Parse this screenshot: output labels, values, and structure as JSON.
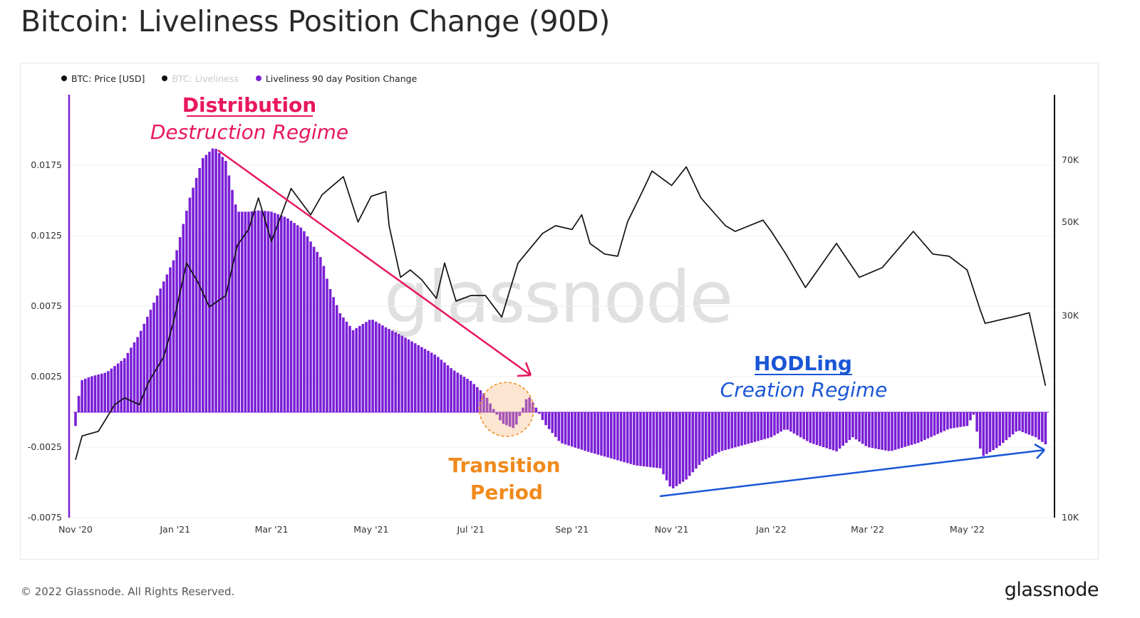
{
  "page_title": "Bitcoin: Liveliness Position Change (90D)",
  "legend": [
    {
      "label": "BTC: Price [USD]",
      "color": "#111111",
      "active": true
    },
    {
      "label": "BTC: Liveliness",
      "color": "#111111",
      "active": false
    },
    {
      "label": "Liveliness 90 day Position Change",
      "color": "#7a1fd6",
      "active": true
    }
  ],
  "watermark": "glassnode",
  "footer": {
    "copyright": "© 2022 Glassnode. All Rights Reserved.",
    "logo": "glassnode"
  },
  "colors": {
    "bars": "#7a1fd6",
    "price": "#111111",
    "distribution": "#e8175d",
    "hodling": "#1a56d6",
    "transition": "#f08a1c"
  },
  "annotations": {
    "distribution_title": "Distribution",
    "distribution_sub": "Destruction Regime",
    "transition_line1": "Transition",
    "transition_line2": "Period",
    "hodling_title": "HODLing",
    "hodling_sub": "Creation Regime"
  },
  "chart_data": {
    "type": "bar",
    "title": "Bitcoin: Liveliness Position Change (90D)",
    "x_axis": {
      "type": "date",
      "range": [
        "2020-11-01",
        "2022-06-20"
      ],
      "ticks": [
        {
          "date": "2020-11-01",
          "label": "Nov '20"
        },
        {
          "date": "2021-01-01",
          "label": "Jan '21"
        },
        {
          "date": "2021-03-01",
          "label": "Mar '21"
        },
        {
          "date": "2021-05-01",
          "label": "May '21"
        },
        {
          "date": "2021-07-01",
          "label": "Jul '21"
        },
        {
          "date": "2021-09-01",
          "label": "Sep '21"
        },
        {
          "date": "2021-11-01",
          "label": "Nov '21"
        },
        {
          "date": "2022-01-01",
          "label": "Jan '22"
        },
        {
          "date": "2022-03-01",
          "label": "Mar '22"
        },
        {
          "date": "2022-05-01",
          "label": "May '22"
        }
      ]
    },
    "y_left": {
      "range": [
        -0.0075,
        0.0225
      ],
      "ticks": [
        {
          "value": -0.0075,
          "label": "-0.0075"
        },
        {
          "value": -0.0025,
          "label": "-0.0025"
        },
        {
          "value": 0.0025,
          "label": "0.0025"
        },
        {
          "value": 0.0075,
          "label": "0.0075"
        },
        {
          "value": 0.0125,
          "label": "0.0125"
        },
        {
          "value": 0.0175,
          "label": "0.0175"
        }
      ]
    },
    "y_right": {
      "scale": "log",
      "range": [
        10000,
        100000
      ],
      "ticks": [
        {
          "value": 10000,
          "label": "10K"
        },
        {
          "value": 30000,
          "label": "30K"
        },
        {
          "value": 50000,
          "label": "50K"
        },
        {
          "value": 70000,
          "label": "70K"
        }
      ]
    },
    "series": [
      {
        "name": "Liveliness 90 day Position Change",
        "axis": "left",
        "type": "bar",
        "color": "#7a1fd6",
        "points": [
          [
            "2020-11-01",
            -0.001
          ],
          [
            "2020-11-04",
            0.0022
          ],
          [
            "2020-11-10",
            0.0025
          ],
          [
            "2020-11-20",
            0.0028
          ],
          [
            "2020-12-01",
            0.0038
          ],
          [
            "2020-12-10",
            0.0055
          ],
          [
            "2020-12-20",
            0.008
          ],
          [
            "2021-01-01",
            0.011
          ],
          [
            "2021-01-10",
            0.0152
          ],
          [
            "2021-01-18",
            0.018
          ],
          [
            "2021-01-25",
            0.0188
          ],
          [
            "2021-02-01",
            0.0178
          ],
          [
            "2021-02-08",
            0.0142
          ],
          [
            "2021-02-15",
            0.0142
          ],
          [
            "2021-02-22",
            0.0143
          ],
          [
            "2021-03-01",
            0.0142
          ],
          [
            "2021-03-10",
            0.0138
          ],
          [
            "2021-03-20",
            0.013
          ],
          [
            "2021-04-01",
            0.0108
          ],
          [
            "2021-04-05",
            0.009
          ],
          [
            "2021-04-12",
            0.007
          ],
          [
            "2021-04-20",
            0.0058
          ],
          [
            "2021-05-01",
            0.0066
          ],
          [
            "2021-05-10",
            0.006
          ],
          [
            "2021-05-20",
            0.0054
          ],
          [
            "2021-06-01",
            0.0046
          ],
          [
            "2021-06-10",
            0.004
          ],
          [
            "2021-06-20",
            0.003
          ],
          [
            "2021-07-01",
            0.0022
          ],
          [
            "2021-07-10",
            0.0012
          ],
          [
            "2021-07-20",
            -0.0008
          ],
          [
            "2021-07-28",
            -0.0012
          ],
          [
            "2021-08-05",
            0.0012
          ],
          [
            "2021-08-10",
            0.0003
          ],
          [
            "2021-08-15",
            -0.0008
          ],
          [
            "2021-08-25",
            -0.0022
          ],
          [
            "2021-09-10",
            -0.0028
          ],
          [
            "2021-09-25",
            -0.0033
          ],
          [
            "2021-10-10",
            -0.0038
          ],
          [
            "2021-10-25",
            -0.004
          ],
          [
            "2021-11-01",
            -0.0055
          ],
          [
            "2021-11-10",
            -0.0048
          ],
          [
            "2021-11-20",
            -0.0035
          ],
          [
            "2021-12-01",
            -0.0028
          ],
          [
            "2021-12-20",
            -0.0022
          ],
          [
            "2022-01-01",
            -0.0018
          ],
          [
            "2022-01-10",
            -0.0012
          ],
          [
            "2022-01-25",
            -0.0022
          ],
          [
            "2022-02-10",
            -0.0028
          ],
          [
            "2022-02-20",
            -0.0018
          ],
          [
            "2022-03-01",
            -0.0025
          ],
          [
            "2022-03-15",
            -0.0028
          ],
          [
            "2022-04-01",
            -0.0022
          ],
          [
            "2022-04-20",
            -0.0012
          ],
          [
            "2022-05-01",
            -0.001
          ],
          [
            "2022-05-05",
            -0.0002
          ],
          [
            "2022-05-10",
            -0.0032
          ],
          [
            "2022-05-20",
            -0.0025
          ],
          [
            "2022-06-01",
            -0.0013
          ],
          [
            "2022-06-12",
            -0.0018
          ],
          [
            "2022-06-18",
            -0.0023
          ]
        ]
      },
      {
        "name": "BTC: Price [USD]",
        "axis": "right",
        "type": "line",
        "color": "#111111",
        "points": [
          [
            "2020-11-01",
            13700
          ],
          [
            "2020-11-05",
            15600
          ],
          [
            "2020-11-15",
            16000
          ],
          [
            "2020-11-25",
            18500
          ],
          [
            "2020-12-01",
            19200
          ],
          [
            "2020-12-10",
            18500
          ],
          [
            "2020-12-16",
            21000
          ],
          [
            "2020-12-25",
            24000
          ],
          [
            "2020-12-31",
            29000
          ],
          [
            "2021-01-08",
            40000
          ],
          [
            "2021-01-15",
            36000
          ],
          [
            "2021-01-22",
            31500
          ],
          [
            "2021-02-01",
            33500
          ],
          [
            "2021-02-08",
            44000
          ],
          [
            "2021-02-15",
            48000
          ],
          [
            "2021-02-21",
            57000
          ],
          [
            "2021-03-01",
            45000
          ],
          [
            "2021-03-13",
            60000
          ],
          [
            "2021-03-25",
            52000
          ],
          [
            "2021-04-01",
            58000
          ],
          [
            "2021-04-14",
            64000
          ],
          [
            "2021-04-23",
            50000
          ],
          [
            "2021-05-01",
            57500
          ],
          [
            "2021-05-10",
            59000
          ],
          [
            "2021-05-12",
            49000
          ],
          [
            "2021-05-19",
            37000
          ],
          [
            "2021-05-25",
            38500
          ],
          [
            "2021-06-01",
            36500
          ],
          [
            "2021-06-10",
            33000
          ],
          [
            "2021-06-15",
            40000
          ],
          [
            "2021-06-22",
            32500
          ],
          [
            "2021-07-01",
            33500
          ],
          [
            "2021-07-10",
            33500
          ],
          [
            "2021-07-20",
            29800
          ],
          [
            "2021-07-30",
            40000
          ],
          [
            "2021-08-14",
            47000
          ],
          [
            "2021-08-22",
            49000
          ],
          [
            "2021-09-01",
            48000
          ],
          [
            "2021-09-07",
            52000
          ],
          [
            "2021-09-12",
            44500
          ],
          [
            "2021-09-21",
            42000
          ],
          [
            "2021-09-29",
            41500
          ],
          [
            "2021-10-05",
            50000
          ],
          [
            "2021-10-15",
            60000
          ],
          [
            "2021-10-20",
            66000
          ],
          [
            "2021-11-01",
            61000
          ],
          [
            "2021-11-10",
            67500
          ],
          [
            "2021-11-19",
            57000
          ],
          [
            "2021-12-04",
            49000
          ],
          [
            "2021-12-10",
            47500
          ],
          [
            "2021-12-27",
            50500
          ],
          [
            "2022-01-01",
            47500
          ],
          [
            "2022-01-10",
            42000
          ],
          [
            "2022-01-22",
            35000
          ],
          [
            "2022-02-10",
            44500
          ],
          [
            "2022-02-24",
            37000
          ],
          [
            "2022-03-10",
            39000
          ],
          [
            "2022-03-29",
            47500
          ],
          [
            "2022-04-10",
            42000
          ],
          [
            "2022-04-20",
            41500
          ],
          [
            "2022-05-01",
            38500
          ],
          [
            "2022-05-09",
            31000
          ],
          [
            "2022-05-12",
            28800
          ],
          [
            "2022-06-01",
            30000
          ],
          [
            "2022-06-08",
            30500
          ],
          [
            "2022-06-18",
            20500
          ]
        ]
      }
    ]
  }
}
